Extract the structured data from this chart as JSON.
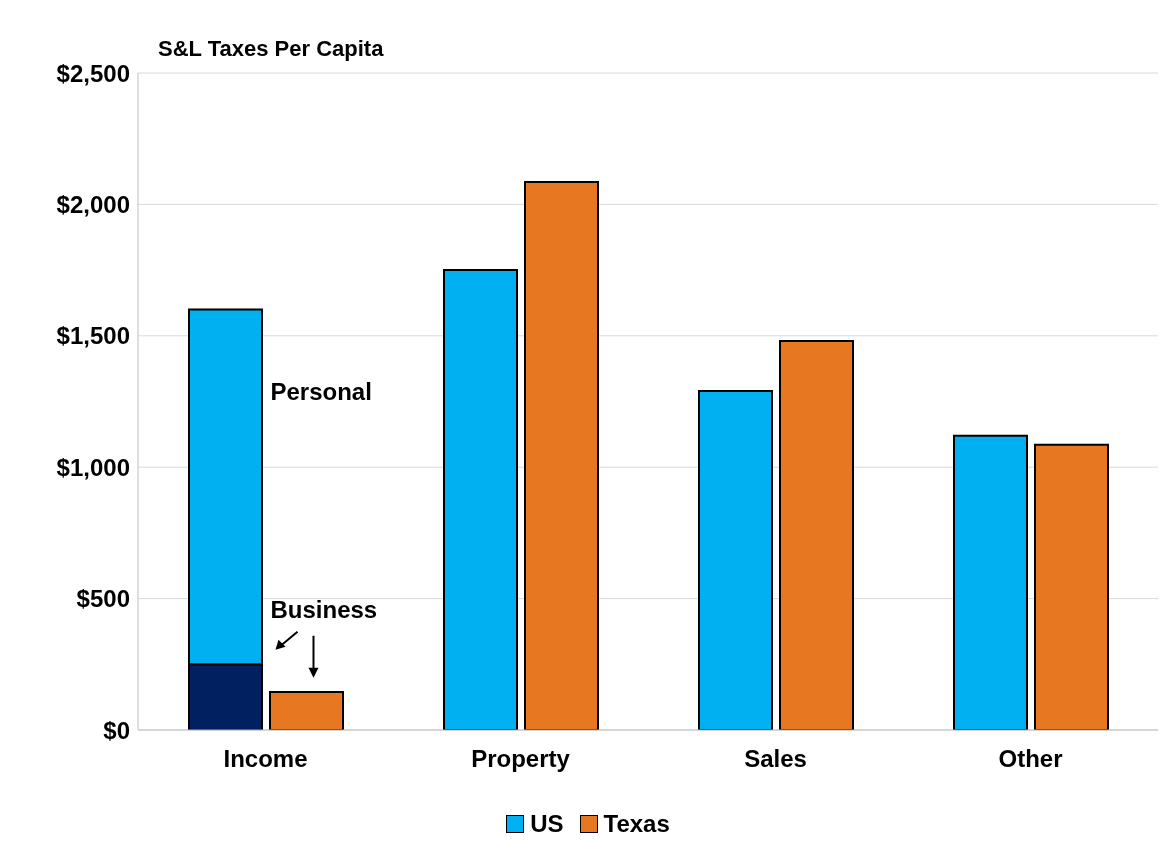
{
  "chart_data": {
    "type": "bar",
    "title": "S&L Taxes Per Capita",
    "categories": [
      "Income",
      "Property",
      "Sales",
      "Other"
    ],
    "series": [
      {
        "color": "#002060",
        "values": [
          250,
          null,
          null,
          null
        ]
      },
      {
        "name": "US",
        "color": "#00b0f0",
        "values": [
          1350,
          1750,
          1290,
          1120
        ],
        "base": [
          250,
          0,
          0,
          0
        ]
      },
      {
        "name": "Texas",
        "color": "#e87722",
        "values": [
          145,
          2085,
          1480,
          1085
        ]
      }
    ],
    "ylim": [
      0,
      2500
    ],
    "yticks": [
      {
        "value": 0,
        "label": "$0"
      },
      {
        "value": 500,
        "label": "$500"
      },
      {
        "value": 1000,
        "label": "$1,000"
      },
      {
        "value": 1500,
        "label": "$1,500"
      },
      {
        "value": 2000,
        "label": "$2,000"
      },
      {
        "value": 2500,
        "label": "$2,500"
      }
    ],
    "grid": "y",
    "legend": "bottom",
    "annotations": [
      {
        "text": "Personal",
        "x": "Income",
        "y": 1280
      },
      {
        "text": "Business",
        "x": "Income",
        "y": 450
      }
    ]
  }
}
